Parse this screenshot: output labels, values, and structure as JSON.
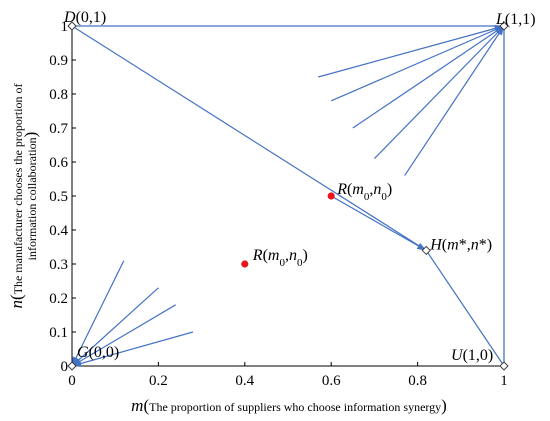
{
  "chart_data": {
    "type": "scatter",
    "title": "",
    "xlabel_var": "m",
    "xlabel_text": "The proportion of suppliers who choose information synergy",
    "ylabel_var": "n",
    "ylabel_line1": "The manufacturer chooses the proportion of",
    "ylabel_line2": "information collaboration",
    "xlim": [
      0,
      1
    ],
    "ylim": [
      0,
      1
    ],
    "x_ticks": [
      "0",
      "0.2",
      "0.4",
      "0.6",
      "0.8",
      "1"
    ],
    "y_ticks": [
      "0",
      "0.1",
      "0.2",
      "0.3",
      "0.4",
      "0.5",
      "0.6",
      "0.7",
      "0.8",
      "0.9",
      "1"
    ],
    "equilibrium_points": [
      {
        "name": "D(0,1)",
        "x": 0,
        "y": 1
      },
      {
        "name": "L(1,1)",
        "x": 1,
        "y": 1
      },
      {
        "name": "G(0,0)",
        "x": 0,
        "y": 0
      },
      {
        "name": "U(1,0)",
        "x": 1,
        "y": 0
      },
      {
        "name": "H(m*,n*)",
        "x": 0.82,
        "y": 0.34
      }
    ],
    "saddle_paths": [
      {
        "name": "D to H",
        "points": [
          [
            0,
            1
          ],
          [
            0.82,
            0.34
          ]
        ]
      },
      {
        "name": "H to U",
        "points": [
          [
            0.82,
            0.34
          ],
          [
            1,
            0
          ]
        ]
      }
    ],
    "red_points": [
      {
        "name": "R(m0,n0) upper",
        "x": 0.6,
        "y": 0.5
      },
      {
        "name": "R(m0,n0) lower",
        "x": 0.4,
        "y": 0.3
      }
    ],
    "point_labels": {
      "D": "D(0,1)",
      "L": "L(1,1)",
      "G": "G(0,0)",
      "U": "U(1,0)",
      "H": "H(m*,n*)",
      "R_upper": "R(m0,n0)",
      "R_lower": "R(m0,n0)"
    },
    "trajectories_to_L": [
      {
        "from": [
          0.57,
          0.85
        ]
      },
      {
        "from": [
          0.6,
          0.78
        ]
      },
      {
        "from": [
          0.65,
          0.7
        ]
      },
      {
        "from": [
          0.7,
          0.61
        ]
      },
      {
        "from": [
          0.77,
          0.56
        ]
      }
    ],
    "trajectories_to_G": [
      {
        "from": [
          0.12,
          0.31
        ]
      },
      {
        "from": [
          0.2,
          0.23
        ]
      },
      {
        "from": [
          0.24,
          0.18
        ]
      },
      {
        "from": [
          0.28,
          0.1
        ]
      }
    ],
    "trajectory_R_to_H": [
      [
        0.6,
        0.5
      ],
      [
        0.82,
        0.34
      ]
    ],
    "line_color": "#4472c4",
    "point_color": "#e8161b",
    "grid": false,
    "legend": "none"
  }
}
